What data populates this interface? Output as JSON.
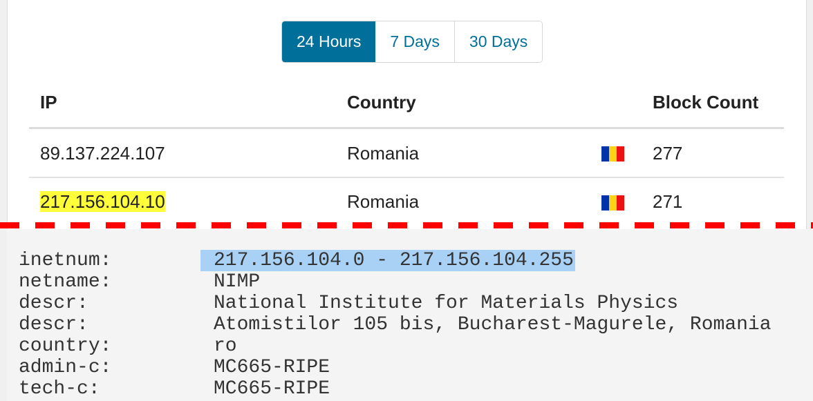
{
  "range_tabs": [
    {
      "label": "24 Hours",
      "active": true
    },
    {
      "label": "7 Days",
      "active": false
    },
    {
      "label": "30 Days",
      "active": false
    }
  ],
  "table": {
    "headers": [
      "IP",
      "Country",
      "Block Count"
    ],
    "rows": [
      {
        "ip": "89.137.224.107",
        "country": "Romania",
        "flag": "romania-flag",
        "count": "277",
        "highlighted": false
      },
      {
        "ip": "217.156.104.10",
        "country": "Romania",
        "flag": "romania-flag",
        "count": "271",
        "highlighted": true
      }
    ]
  },
  "whois": [
    {
      "key": "inetnum:",
      "value": "217.156.104.0 - 217.156.104.255",
      "selected": true
    },
    {
      "key": "netname:",
      "value": "NIMP"
    },
    {
      "key": "descr:",
      "value": "National Institute for Materials Physics"
    },
    {
      "key": "descr:",
      "value": "Atomistilor 105 bis, Bucharest-Magurele, Romania"
    },
    {
      "key": "country:",
      "value": "ro"
    },
    {
      "key": "admin-c:",
      "value": "MC665-RIPE"
    },
    {
      "key": "tech-c:",
      "value": "MC665-RIPE"
    }
  ],
  "colors": {
    "accent": "#00709b",
    "highlight": "#ffff3a",
    "selection": "#a9d1f5",
    "divider": "#ff0000"
  }
}
